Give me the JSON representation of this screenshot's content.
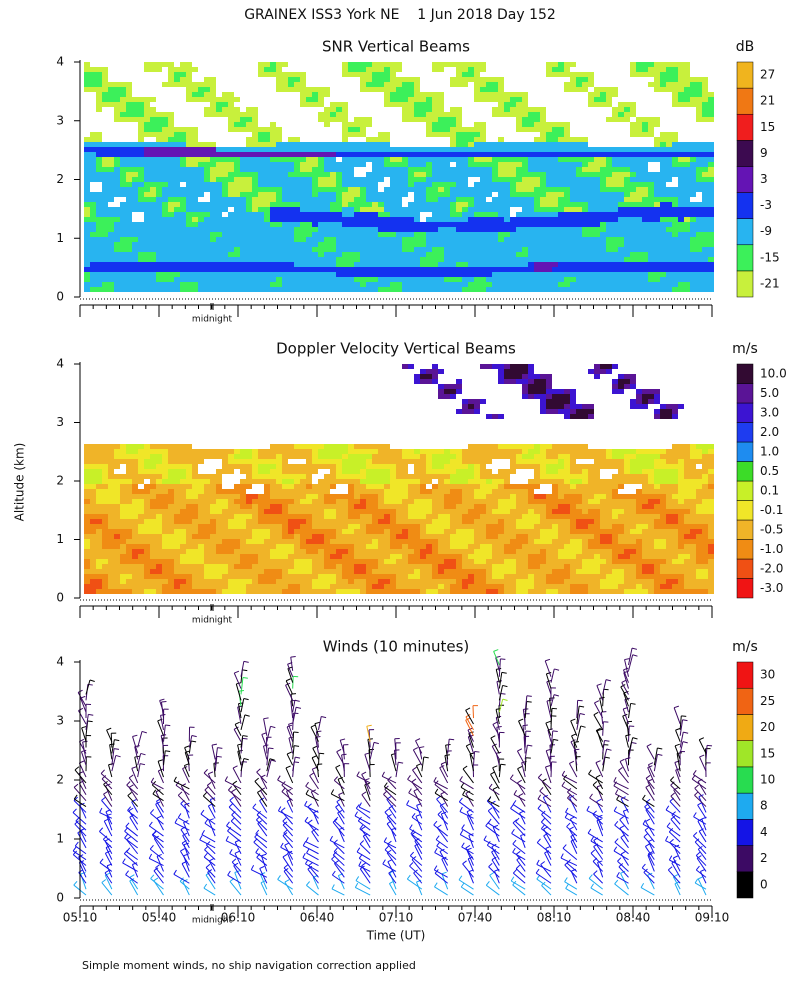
{
  "title": "GRAINEX ISS3 York NE    1 Jun 2018 Day 152",
  "chart_data": [
    {
      "type": "heatmap",
      "title": "SNR Vertical Beams",
      "ylim": [
        0,
        4
      ],
      "yticks": [
        0,
        1,
        2,
        3,
        4
      ],
      "annotation": "midnight",
      "colorbar": {
        "label": "dB",
        "ticks": [
          -21,
          -15,
          -9,
          -3,
          3,
          9,
          15,
          21,
          27
        ],
        "colors": [
          "#c8f03c",
          "#3cf05a",
          "#28b4f0",
          "#1432f0",
          "#6414b4",
          "#3c0a50",
          "#f01e1e",
          "#f07814",
          "#f0b41e"
        ]
      }
    },
    {
      "type": "heatmap",
      "title": "Doppler Velocity Vertical Beams",
      "ylabel": "Altitude (km)",
      "ylim": [
        0,
        4
      ],
      "yticks": [
        0,
        1,
        2,
        3,
        4
      ],
      "annotation": "midnight",
      "colorbar": {
        "label": "m/s",
        "ticks": [
          {
            "value": -3,
            "label": "-3.0"
          },
          {
            "value": -2,
            "label": "-2.0"
          },
          {
            "value": -1,
            "label": "-1.0"
          },
          {
            "value": -0.5,
            "label": "-0.5"
          },
          {
            "value": -0.1,
            "label": "-0.1"
          },
          {
            "value": 0.1,
            "label": "0.1"
          },
          {
            "value": 0.5,
            "label": "0.5"
          },
          {
            "value": 1,
            "label": "1.0"
          },
          {
            "value": 2,
            "label": "2.0"
          },
          {
            "value": 3,
            "label": "3.0"
          },
          {
            "value": 5,
            "label": "5.0"
          },
          {
            "value": 10,
            "label": "10.0"
          }
        ],
        "colors": [
          "#f01414",
          "#f05014",
          "#f08c14",
          "#f0b428",
          "#f0e628",
          "#c8f028",
          "#3cdc28",
          "#1e8cf0",
          "#1e3cf0",
          "#3c14d2",
          "#5a1496",
          "#320a32"
        ]
      }
    },
    {
      "type": "barbs",
      "title": "Winds (10 minutes)",
      "ylim": [
        0,
        4
      ],
      "yticks": [
        0,
        1,
        2,
        3,
        4
      ],
      "annotation": "midnight",
      "x": [
        "05:10",
        "05:40",
        "06:10",
        "06:40",
        "07:10",
        "07:40",
        "08:10",
        "08:40",
        "09:10"
      ],
      "xlabel": "Time (UT)",
      "colorbar": {
        "label": "m/s",
        "ticks": [
          0,
          2,
          4,
          8,
          10,
          15,
          20,
          25,
          30
        ],
        "colors": [
          "#000000",
          "#3c0a64",
          "#1414e6",
          "#1eaaf0",
          "#28dc50",
          "#a0e628",
          "#f0aa14",
          "#f06414",
          "#f01414"
        ]
      }
    }
  ],
  "footnote": "Simple moment winds, no ship navigation correction applied"
}
